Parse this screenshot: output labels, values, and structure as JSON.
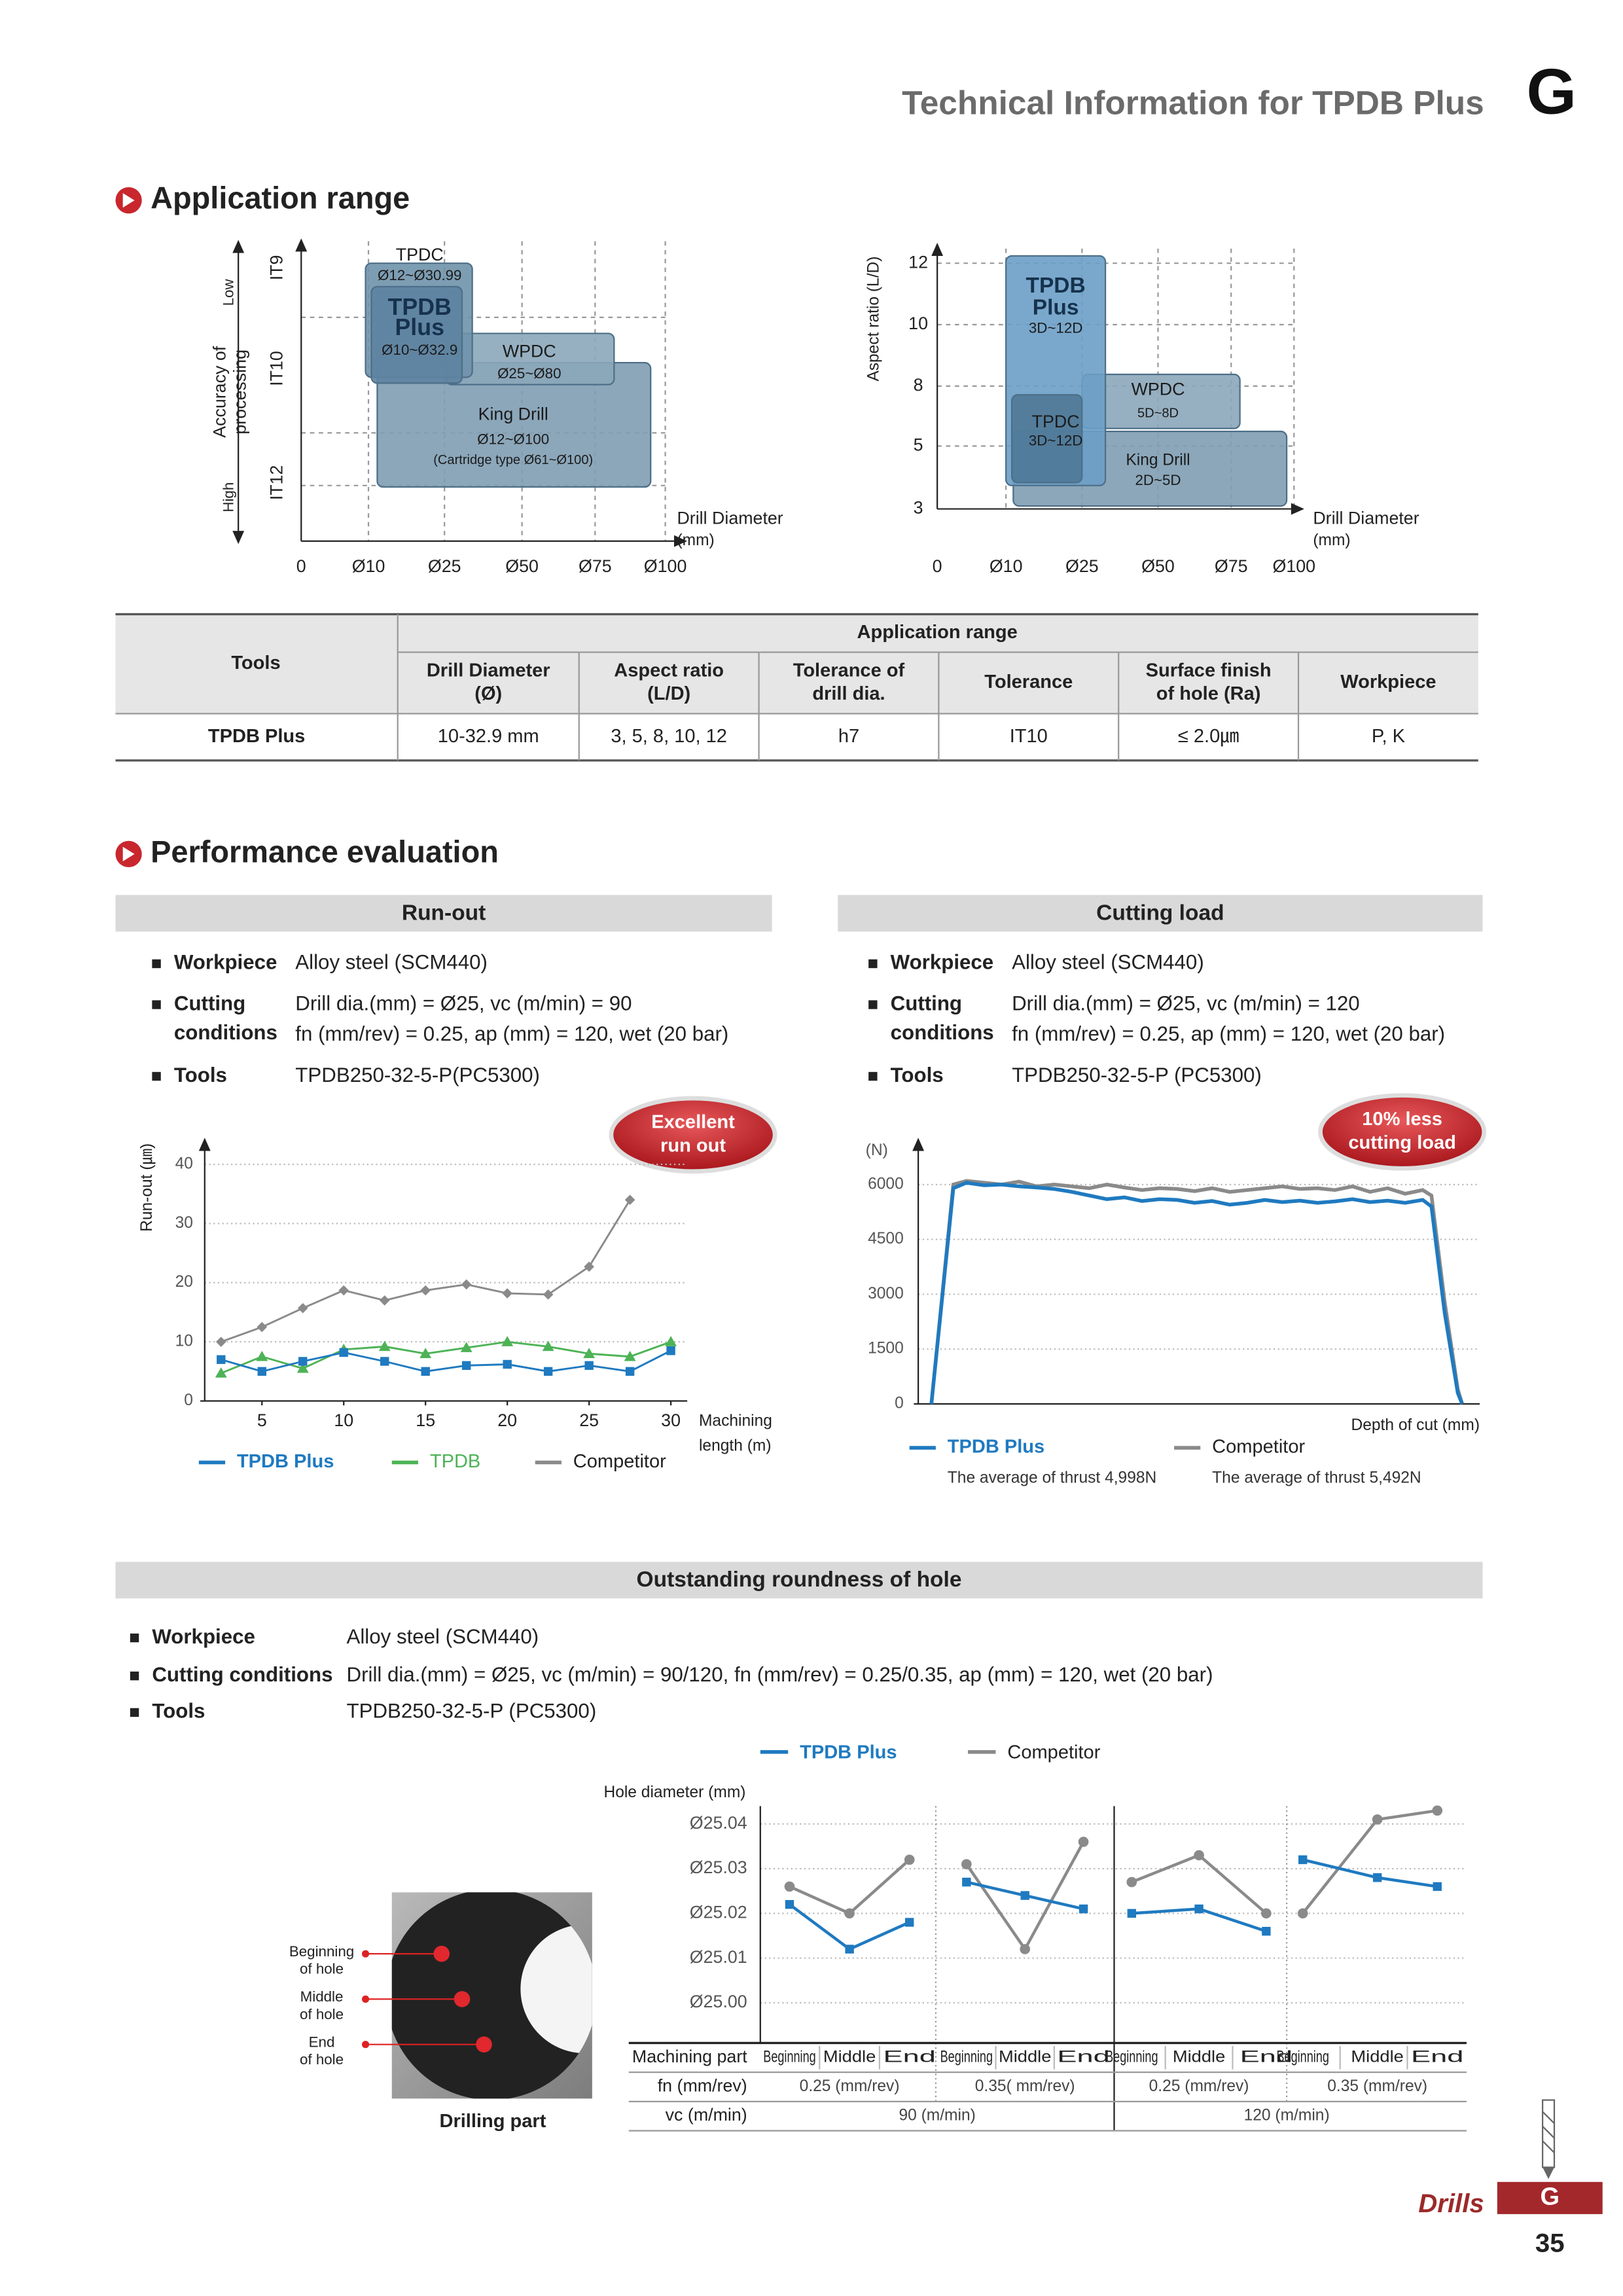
{
  "header": {
    "title": "Technical Information for TPDB Plus",
    "section": "G"
  },
  "application_range": {
    "heading": "Application range",
    "accuracy_diagram": {
      "y_label": [
        "Accuracy of",
        "processing"
      ],
      "low": "Low",
      "high": "High",
      "y_levels": [
        "IT9",
        "IT10",
        "IT12"
      ],
      "x_labels": [
        "0",
        "Ø10",
        "Ø25",
        "Ø50",
        "Ø75",
        "Ø100"
      ],
      "x_label": [
        "Drill Diameter",
        "(mm)"
      ],
      "boxes": [
        {
          "lines": [
            "King Drill",
            "Ø12~Ø100",
            "(Cartridge type Ø61~Ø100)"
          ]
        },
        {
          "lines": [
            "WPDC",
            "Ø25~Ø80"
          ]
        },
        {
          "lines": [
            "TPDC",
            "Ø12~Ø30.99"
          ]
        },
        {
          "lines": [
            "TPDB",
            "Plus",
            "Ø10~Ø32.9"
          ]
        }
      ]
    },
    "aspect_diagram": {
      "y_label": "Aspect ratio (L/D)",
      "y_levels": [
        "12",
        "10",
        "8",
        "5",
        "3"
      ],
      "x_labels": [
        "0",
        "Ø10",
        "Ø25",
        "Ø50",
        "Ø75",
        "Ø100"
      ],
      "x_label": [
        "Drill Diameter",
        "(mm)"
      ],
      "boxes": [
        {
          "lines": [
            "King Drill",
            "2D~5D"
          ]
        },
        {
          "lines": [
            "WPDC",
            "5D~8D"
          ]
        },
        {
          "lines": [
            "TPDB",
            "Plus",
            "3D~12D"
          ]
        },
        {
          "lines": [
            "TPDC",
            "3D~12D"
          ]
        }
      ]
    }
  },
  "table": {
    "tools": "Tools",
    "group": "Application range",
    "columns": [
      [
        "Drill Diameter",
        "(Ø)"
      ],
      [
        "Aspect ratio",
        "(L/D)"
      ],
      [
        "Tolerance of",
        "drill dia."
      ],
      [
        "Tolerance"
      ],
      [
        "Surface finish",
        "of hole (Ra)"
      ],
      [
        "Workpiece"
      ]
    ],
    "rows": [
      [
        "TPDB Plus",
        "10-32.9 mm",
        "3, 5, 8, 10, 12",
        "h7",
        "IT10",
        "≤ 2.0㎛",
        "P, K"
      ]
    ]
  },
  "performance": {
    "heading": "Performance evaluation",
    "runout": {
      "title": "Run-out",
      "badge": [
        "Excellent",
        "run out"
      ],
      "specs": [
        {
          "label": [
            "Workpiece"
          ],
          "value": [
            "Alloy steel (SCM440)"
          ]
        },
        {
          "label": [
            "Cutting",
            "conditions"
          ],
          "value": [
            "Drill dia.(mm) = Ø25, vc (m/min) = 90",
            "fn (mm/rev) = 0.25, ap (mm) = 120, wet (20 bar)"
          ]
        },
        {
          "label": [
            "Tools"
          ],
          "value": [
            "TPDB250-32-5-P(PC5300)"
          ]
        }
      ],
      "chart_data": {
        "type": "line",
        "y_label": "Run-out (㎛)",
        "x_label": [
          "Machining",
          "length (m)"
        ],
        "x": [
          2.5,
          5,
          7.5,
          10,
          12.5,
          15,
          17.5,
          20,
          22.5,
          25,
          27.5,
          30
        ],
        "xlim": [
          1.5,
          31
        ],
        "xticks": [
          5,
          10,
          15,
          20,
          25,
          30
        ],
        "ylim": [
          0,
          44
        ],
        "yticks": [
          0,
          10,
          20,
          30,
          40
        ],
        "grid": true,
        "series": [
          {
            "name": "TPDB Plus",
            "color": "#1f7ac0",
            "values": [
              7,
              5,
              6.7,
              8.2,
              6.7,
              5,
              6,
              6.2,
              5,
              6,
              5,
              8.5
            ]
          },
          {
            "name": "TPDB",
            "color": "#4db356",
            "values": [
              4.7,
              7.5,
              5.5,
              8.7,
              9.2,
              8,
              9,
              10,
              9.2,
              8,
              7.5,
              10
            ]
          },
          {
            "name": "Competitor",
            "color": "#8a8a8a",
            "values": [
              10,
              12.5,
              15.7,
              18.7,
              17,
              18.7,
              19.7,
              18.2,
              18,
              22.7,
              34,
              null
            ]
          }
        ]
      }
    },
    "cutting_load": {
      "title": "Cutting load",
      "badge": [
        "10% less",
        "cutting load"
      ],
      "specs": [
        {
          "label": [
            "Workpiece"
          ],
          "value": [
            "Alloy steel (SCM440)"
          ]
        },
        {
          "label": [
            "Cutting",
            "conditions"
          ],
          "value": [
            "Drill dia.(mm) = Ø25, vc (m/min) = 120",
            "fn (mm/rev) = 0.25, ap (mm) = 120, wet (20 bar)"
          ]
        },
        {
          "label": [
            "Tools"
          ],
          "value": [
            "TPDB250-32-5-P (PC5300)"
          ]
        }
      ],
      "chart_data": {
        "type": "line",
        "y_unit": "(N)",
        "x_label": "Depth of cut (mm)",
        "x": [
          0,
          5,
          8,
          12,
          16,
          20,
          24,
          28,
          32,
          36,
          40,
          44,
          48,
          52,
          56,
          60,
          64,
          68,
          72,
          76,
          80,
          84,
          88,
          92,
          96,
          100,
          104,
          108,
          112,
          114,
          117,
          120,
          121
        ],
        "xlim": [
          -3,
          125
        ],
        "ylim": [
          0,
          7200
        ],
        "yticks": [
          0,
          1500,
          3000,
          4500,
          6000
        ],
        "grid": true,
        "series": [
          {
            "name": "TPDB Plus",
            "color": "#1f7ac0",
            "note": "The average of thrust 4,998N",
            "values": [
              0,
              5900,
              6050,
              5980,
              6000,
              5950,
              5920,
              5880,
              5800,
              5700,
              5600,
              5650,
              5550,
              5600,
              5580,
              5500,
              5550,
              5450,
              5500,
              5580,
              5520,
              5560,
              5500,
              5540,
              5600,
              5520,
              5560,
              5500,
              5580,
              5400,
              2500,
              300,
              0
            ]
          },
          {
            "name": "Competitor",
            "color": "#8a8a8a",
            "note": "The average of thrust 5,492N",
            "values": [
              0,
              6000,
              6100,
              6050,
              6000,
              6080,
              5950,
              6000,
              5950,
              5900,
              6000,
              5920,
              5850,
              5900,
              5880,
              5820,
              5900,
              5800,
              5850,
              5900,
              5950,
              5880,
              5900,
              5850,
              5950,
              5800,
              5900,
              5750,
              5850,
              5700,
              2800,
              400,
              0
            ]
          }
        ]
      }
    },
    "roundness": {
      "title": "Outstanding roundness of hole",
      "specs": [
        {
          "label": [
            "Workpiece"
          ],
          "value": [
            "Alloy steel (SCM440)"
          ]
        },
        {
          "label": [
            "Cutting conditions"
          ],
          "value": [
            "Drill dia.(mm) = Ø25, vc (m/min) = 90/120, fn (mm/rev) = 0.25/0.35, ap (mm) = 120, wet (20 bar)"
          ]
        },
        {
          "label": [
            "Tools"
          ],
          "value": [
            "TPDB250-32-5-P (PC5300)"
          ]
        }
      ],
      "photo": {
        "labels": [
          [
            "Beginning",
            "of hole"
          ],
          [
            "Middle",
            "of hole"
          ],
          [
            "End",
            "of hole"
          ]
        ],
        "caption": "Drilling part"
      },
      "chart_data": {
        "type": "line",
        "y_label": "Hole diameter (mm)",
        "row_labels": [
          "Machining part",
          "fn (mm/rev)",
          "vc (m/min)"
        ],
        "categories": [
          "Beginning",
          "Middle",
          "End",
          "Beginning",
          "Middle",
          "End",
          "Beginning",
          "Middle",
          "End",
          "Beginning",
          "Middle",
          "End"
        ],
        "fn_labels": [
          "0.25 (mm/rev)",
          "0.35( mm/rev)",
          "0.25 (mm/rev)",
          "0.35 (mm/rev)"
        ],
        "vc_labels": [
          "90 (m/min)",
          "120 (m/min)"
        ],
        "ylim": [
          24.991,
          25.044
        ],
        "yticks": [
          {
            "value": 25.04,
            "label": "Ø25.04"
          },
          {
            "value": 25.03,
            "label": "Ø25.03"
          },
          {
            "value": 25.02,
            "label": "Ø25.02"
          },
          {
            "value": 25.01,
            "label": "Ø25.01"
          },
          {
            "value": 25.0,
            "label": "Ø25.00"
          }
        ],
        "grid": true,
        "series": [
          {
            "name": "TPDB Plus",
            "color": "#1f7ac0",
            "values": [
              25.022,
              25.012,
              25.018,
              25.027,
              25.024,
              25.021,
              25.02,
              25.021,
              25.016,
              25.032,
              25.028,
              25.026
            ]
          },
          {
            "name": "Competitor",
            "color": "#8a8a8a",
            "values": [
              25.026,
              25.02,
              25.032,
              25.031,
              25.012,
              25.036,
              25.027,
              25.033,
              25.02,
              25.02,
              25.041,
              25.043
            ]
          }
        ]
      }
    }
  },
  "footer": {
    "section_name": "Drills",
    "section": "G",
    "page": "35"
  }
}
